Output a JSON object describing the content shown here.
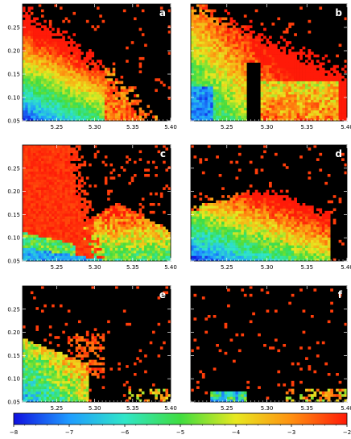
{
  "chart_data": {
    "type": "heatmap",
    "colorbar": {
      "ticks": [
        "−8",
        "−7",
        "−6",
        "−5",
        "−4",
        "−3",
        "−2"
      ],
      "range": [
        -8,
        -2
      ],
      "colormap": [
        "#1010e0",
        "#1f9cff",
        "#30e6c8",
        "#40dd40",
        "#e8e820",
        "#ff9010",
        "#ff1a08"
      ]
    },
    "background_color": "#000000",
    "xlim": [
      5.205,
      5.4
    ],
    "ylim": [
      0.05,
      0.3
    ],
    "x_ticks": [
      "5.25",
      "5.30",
      "5.35",
      "5.40"
    ],
    "y_ticks": [
      "0.05",
      "0.10",
      "0.15",
      "0.20",
      "0.25"
    ],
    "panels": [
      {
        "id": "a",
        "label": "a"
      },
      {
        "id": "b",
        "label": "b"
      },
      {
        "id": "c",
        "label": "c"
      },
      {
        "id": "d",
        "label": "d"
      },
      {
        "id": "e",
        "label": "e"
      },
      {
        "id": "f",
        "label": "f"
      }
    ]
  }
}
